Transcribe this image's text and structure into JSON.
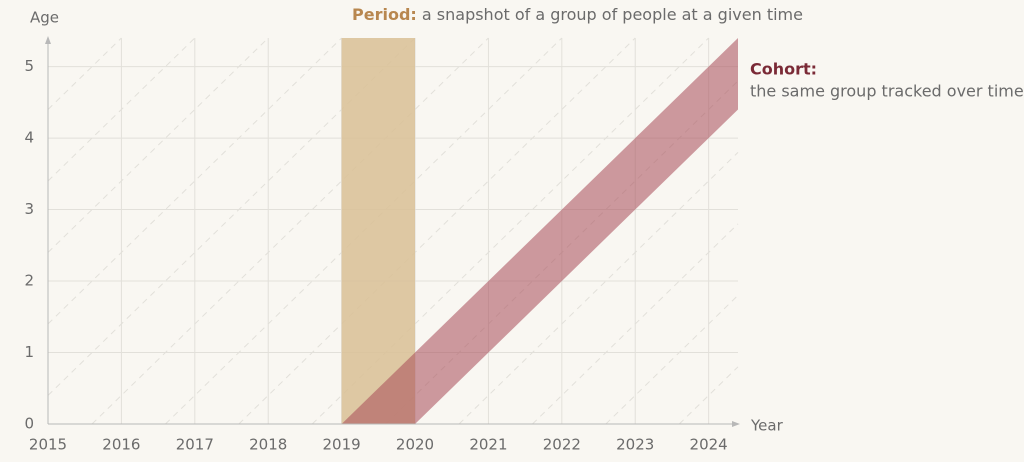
{
  "chart_data": {
    "type": "lexis",
    "xlabel": "Year",
    "ylabel": "Age",
    "xlim": [
      2015,
      2024.4
    ],
    "ylim": [
      0,
      5.4
    ],
    "xticks": [
      2015,
      2016,
      2017,
      2018,
      2019,
      2020,
      2021,
      2022,
      2023,
      2024
    ],
    "yticks": [
      0,
      1,
      2,
      3,
      4,
      5
    ],
    "grid": true,
    "period": {
      "label": "Period:",
      "text": "a snapshot of a group of people at a given time",
      "start": 2019,
      "end": 2020,
      "color": "#d9bf95"
    },
    "cohort": {
      "label": "Cohort:",
      "text": "the same group tracked over time",
      "start": 2019,
      "end": 2020,
      "color": "#a84a57"
    }
  }
}
